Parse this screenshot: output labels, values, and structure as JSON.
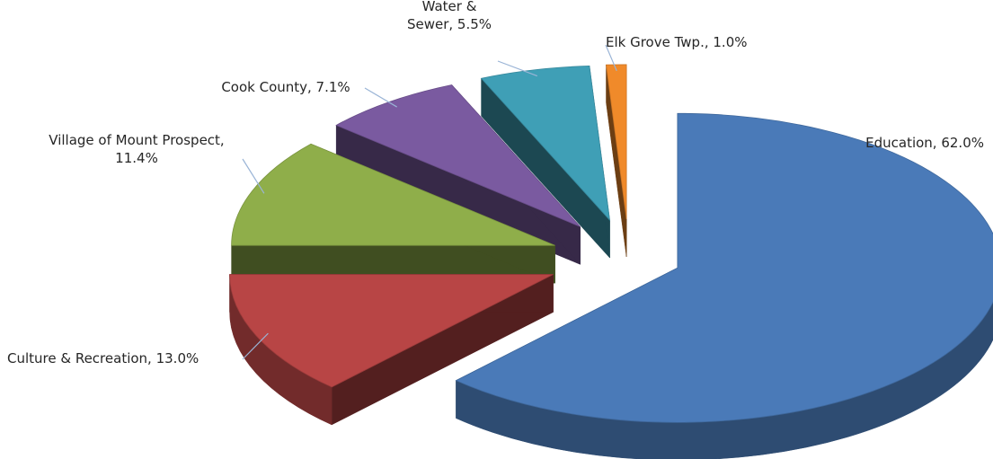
{
  "chart_data": {
    "type": "pie",
    "title": "",
    "categories": [
      "Education",
      "Culture & Recreation",
      "Village of Mount Prospect",
      "Cook County",
      "Water & Sewer",
      "Elk Grove Twp."
    ],
    "values": [
      62.0,
      13.0,
      11.4,
      7.1,
      5.5,
      1.0
    ],
    "labels": [
      [
        "Education, 62.0%"
      ],
      [
        "Culture & Recreation, 13.0%"
      ],
      [
        "Village of Mount Prospect,",
        "11.4%"
      ],
      [
        "Cook County, 7.1%"
      ],
      [
        "Water &",
        "Sewer, 5.5%"
      ],
      [
        "Elk Grove Twp., 1.0%"
      ]
    ],
    "colors": [
      "#4a7ab8",
      "#b84545",
      "#8fae4a",
      "#7a5aa0",
      "#3f9fb6",
      "#f08a2a"
    ],
    "legend": "none",
    "style": "3d-exploded"
  }
}
